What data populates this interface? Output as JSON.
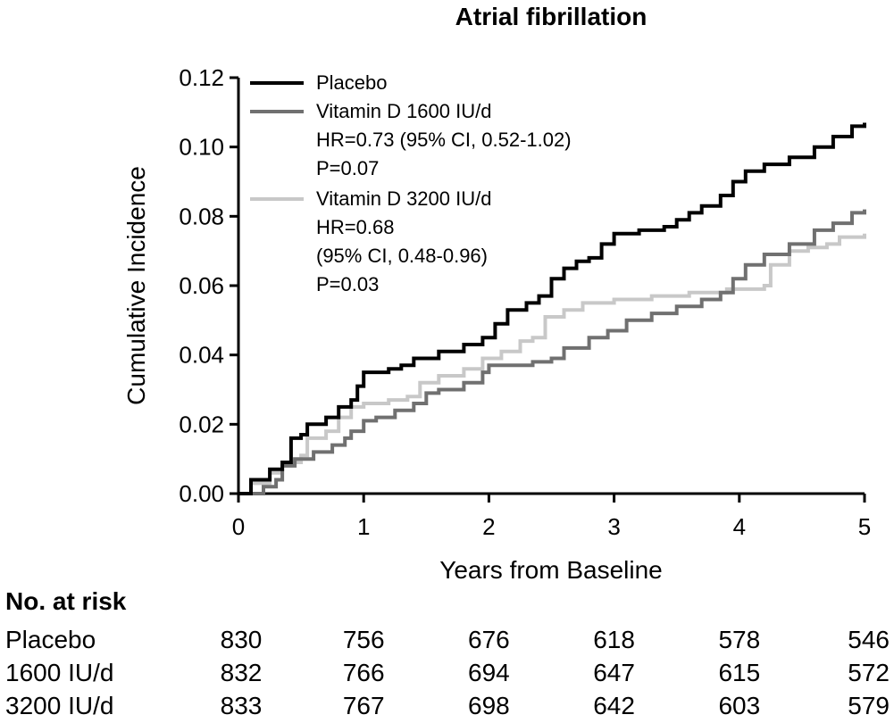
{
  "chart_data": {
    "type": "line",
    "title": "Atrial fibrillation",
    "xlabel": "Years from Baseline",
    "ylabel": "Cumulative Incidence",
    "xlim": [
      0,
      5
    ],
    "ylim": [
      0,
      0.12
    ],
    "x_ticks": [
      "0",
      "1",
      "2",
      "3",
      "4",
      "5"
    ],
    "y_ticks": [
      "0.00",
      "0.02",
      "0.04",
      "0.06",
      "0.08",
      "0.10",
      "0.12"
    ],
    "grid": false,
    "legend_position": "top-left",
    "series": [
      {
        "name": "Placebo",
        "color": "#000000",
        "legend_lines": [
          "Placebo"
        ],
        "points": [
          [
            0,
            0
          ],
          [
            0.1,
            0.004
          ],
          [
            0.25,
            0.007
          ],
          [
            0.35,
            0.009
          ],
          [
            0.42,
            0.016
          ],
          [
            0.5,
            0.017
          ],
          [
            0.55,
            0.02
          ],
          [
            0.7,
            0.022
          ],
          [
            0.8,
            0.025
          ],
          [
            0.9,
            0.027
          ],
          [
            0.95,
            0.031
          ],
          [
            1.0,
            0.035
          ],
          [
            1.2,
            0.036
          ],
          [
            1.3,
            0.037
          ],
          [
            1.4,
            0.039
          ],
          [
            1.6,
            0.041
          ],
          [
            1.8,
            0.043
          ],
          [
            1.95,
            0.045
          ],
          [
            2.05,
            0.049
          ],
          [
            2.15,
            0.053
          ],
          [
            2.3,
            0.055
          ],
          [
            2.4,
            0.057
          ],
          [
            2.5,
            0.062
          ],
          [
            2.6,
            0.065
          ],
          [
            2.7,
            0.067
          ],
          [
            2.8,
            0.068
          ],
          [
            2.9,
            0.072
          ],
          [
            3.0,
            0.075
          ],
          [
            3.2,
            0.076
          ],
          [
            3.4,
            0.077
          ],
          [
            3.5,
            0.079
          ],
          [
            3.6,
            0.081
          ],
          [
            3.7,
            0.083
          ],
          [
            3.85,
            0.086
          ],
          [
            3.95,
            0.09
          ],
          [
            4.05,
            0.093
          ],
          [
            4.2,
            0.095
          ],
          [
            4.4,
            0.097
          ],
          [
            4.6,
            0.1
          ],
          [
            4.75,
            0.103
          ],
          [
            4.9,
            0.106
          ],
          [
            5.0,
            0.107
          ]
        ]
      },
      {
        "name": "Vitamin D 1600 IU/d",
        "color": "#707070",
        "legend_lines": [
          "Vitamin D 1600 IU/d",
          "HR=0.73 (95% CI, 0.52-1.02)",
          "P=0.07"
        ],
        "points": [
          [
            0,
            0
          ],
          [
            0.2,
            0.002
          ],
          [
            0.3,
            0.004
          ],
          [
            0.35,
            0.008
          ],
          [
            0.45,
            0.01
          ],
          [
            0.6,
            0.012
          ],
          [
            0.75,
            0.014
          ],
          [
            0.85,
            0.016
          ],
          [
            0.9,
            0.018
          ],
          [
            1.0,
            0.021
          ],
          [
            1.1,
            0.022
          ],
          [
            1.25,
            0.024
          ],
          [
            1.4,
            0.026
          ],
          [
            1.5,
            0.029
          ],
          [
            1.6,
            0.03
          ],
          [
            1.8,
            0.032
          ],
          [
            1.95,
            0.035
          ],
          [
            2.0,
            0.037
          ],
          [
            2.2,
            0.037
          ],
          [
            2.35,
            0.038
          ],
          [
            2.5,
            0.039
          ],
          [
            2.6,
            0.042
          ],
          [
            2.8,
            0.045
          ],
          [
            2.95,
            0.047
          ],
          [
            3.1,
            0.05
          ],
          [
            3.3,
            0.052
          ],
          [
            3.5,
            0.054
          ],
          [
            3.7,
            0.056
          ],
          [
            3.85,
            0.058
          ],
          [
            3.95,
            0.062
          ],
          [
            4.05,
            0.066
          ],
          [
            4.2,
            0.069
          ],
          [
            4.4,
            0.072
          ],
          [
            4.6,
            0.076
          ],
          [
            4.75,
            0.078
          ],
          [
            4.9,
            0.081
          ],
          [
            5.0,
            0.082
          ]
        ]
      },
      {
        "name": "Vitamin D 3200 IU/d",
        "color": "#c8c8c8",
        "legend_lines": [
          "Vitamin D 3200 IU/d",
          "HR=0.68",
          "(95% CI, 0.48-0.96)",
          "P=0.03"
        ],
        "points": [
          [
            0,
            0
          ],
          [
            0.1,
            0.003
          ],
          [
            0.25,
            0.006
          ],
          [
            0.35,
            0.009
          ],
          [
            0.5,
            0.011
          ],
          [
            0.55,
            0.016
          ],
          [
            0.7,
            0.018
          ],
          [
            0.8,
            0.022
          ],
          [
            0.9,
            0.025
          ],
          [
            1.0,
            0.026
          ],
          [
            1.2,
            0.027
          ],
          [
            1.35,
            0.028
          ],
          [
            1.45,
            0.032
          ],
          [
            1.6,
            0.034
          ],
          [
            1.8,
            0.036
          ],
          [
            1.95,
            0.039
          ],
          [
            2.1,
            0.041
          ],
          [
            2.25,
            0.044
          ],
          [
            2.35,
            0.045
          ],
          [
            2.45,
            0.051
          ],
          [
            2.6,
            0.053
          ],
          [
            2.75,
            0.055
          ],
          [
            3.0,
            0.056
          ],
          [
            3.3,
            0.057
          ],
          [
            3.6,
            0.058
          ],
          [
            3.9,
            0.059
          ],
          [
            4.2,
            0.06
          ],
          [
            4.25,
            0.066
          ],
          [
            4.4,
            0.07
          ],
          [
            4.55,
            0.071
          ],
          [
            4.7,
            0.072
          ],
          [
            4.8,
            0.074
          ],
          [
            5.0,
            0.075
          ]
        ]
      }
    ]
  },
  "risk_table": {
    "title": "No. at risk",
    "rows": [
      {
        "label": "Placebo",
        "values": [
          "830",
          "756",
          "676",
          "618",
          "578",
          "546"
        ]
      },
      {
        "label": "1600 IU/d",
        "values": [
          "832",
          "766",
          "694",
          "647",
          "615",
          "572"
        ]
      },
      {
        "label": "3200 IU/d",
        "values": [
          "833",
          "767",
          "698",
          "642",
          "603",
          "579"
        ]
      }
    ]
  }
}
